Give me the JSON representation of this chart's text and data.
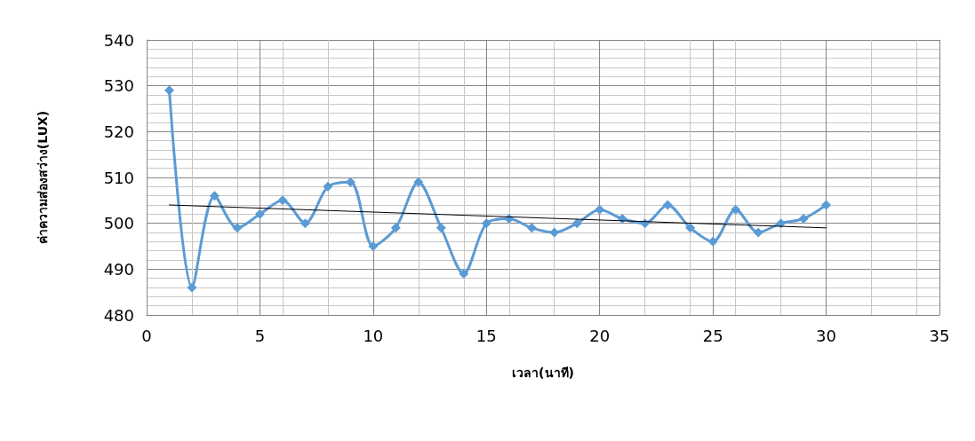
{
  "chart_data": {
    "type": "line",
    "xlabel": "เวลา(นาที)",
    "ylabel": "ค่าความส่องสว่าง(LUX)",
    "xlim": [
      0,
      35
    ],
    "xticks": [
      0,
      5,
      10,
      15,
      20,
      25,
      30,
      35
    ],
    "ylim": [
      480,
      540
    ],
    "yticks": [
      480,
      490,
      500,
      510,
      520,
      530,
      540
    ],
    "grid": true,
    "marker": "diamond",
    "line_style": "solid",
    "series": [
      {
        "color": "#5b9bd5",
        "x": [
          1,
          2,
          3,
          4,
          5,
          6,
          7,
          8,
          9,
          10,
          11,
          12,
          13,
          14,
          15,
          16,
          17,
          18,
          19,
          20,
          21,
          22,
          23,
          24,
          25,
          26,
          27,
          28,
          29,
          30
        ],
        "values": [
          529,
          486,
          506,
          499,
          502,
          505,
          500,
          508,
          509,
          495,
          499,
          509,
          499,
          489,
          500,
          501,
          499,
          498,
          500,
          503,
          501,
          500,
          504,
          499,
          496,
          503,
          498,
          500,
          501,
          504
        ]
      },
      {
        "type": "line",
        "color": "#000000",
        "marker": "none",
        "x": [
          1,
          30
        ],
        "values": [
          504,
          499
        ]
      }
    ]
  }
}
